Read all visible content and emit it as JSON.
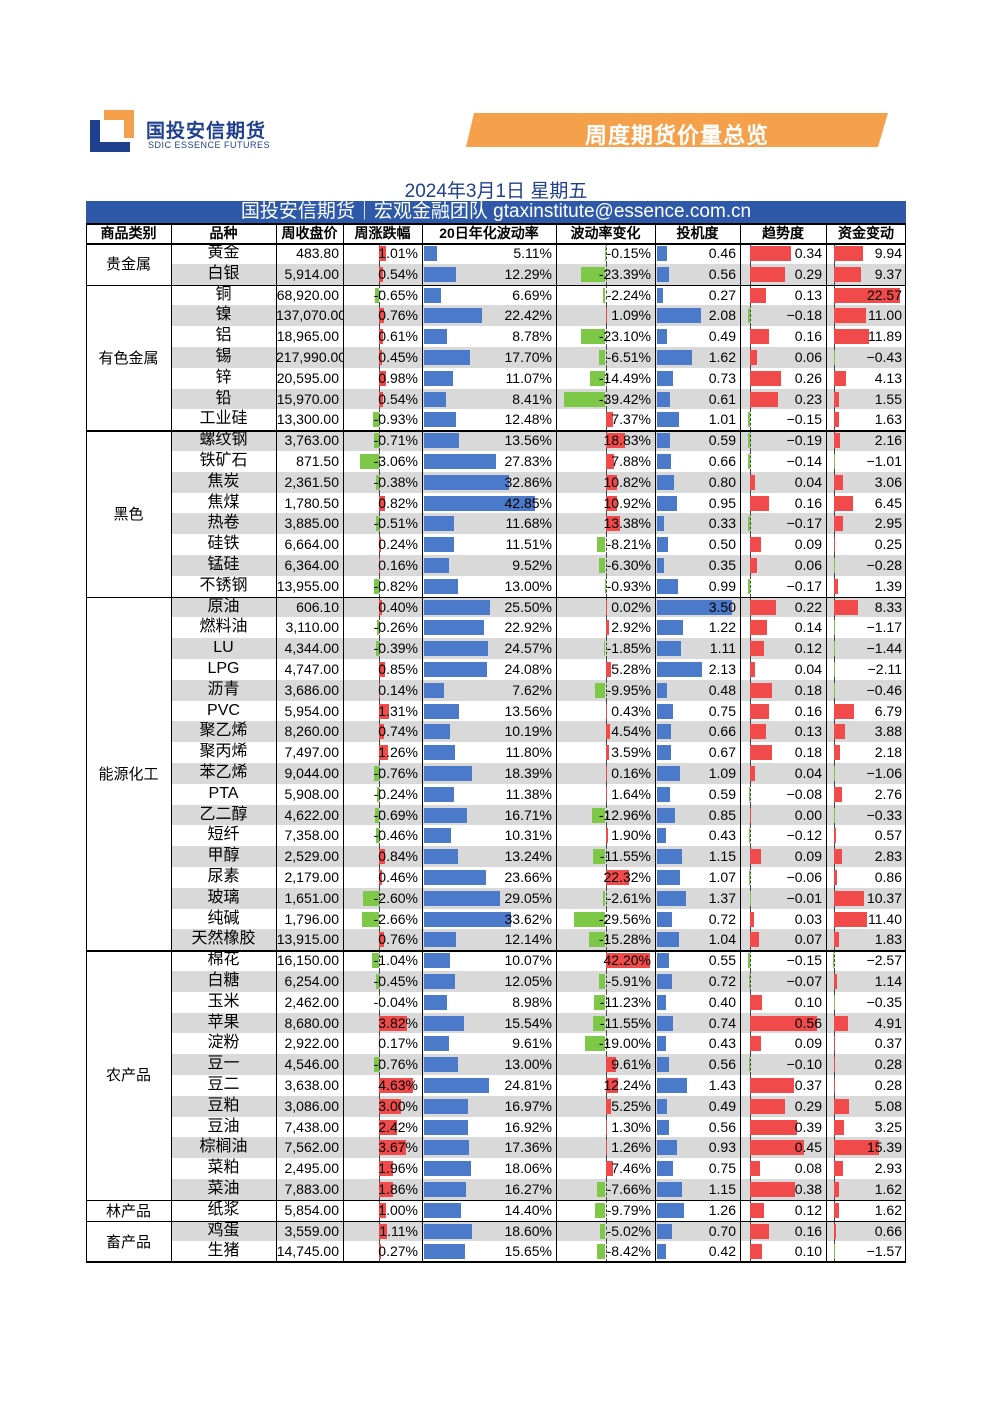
{
  "header": {
    "logo_cn": "国投安信期货",
    "logo_en": "SDIC ESSENCE FUTURES",
    "banner": "周度期货价量总览",
    "date": "2024年3月1日 星期五",
    "subtitle": "国投安信期货｜宏观金融团队 gtaxinstitute@essence.com.cn"
  },
  "colors": {
    "blue_bar": "#4a7ac9",
    "red_bar": "#f04a4a",
    "green_bar": "#7ec847",
    "grey_row": "#d9d9d9",
    "header_blue": "#2e59a8",
    "orange": "#f5a04a"
  },
  "table": {
    "columns": [
      "商品类别",
      "品种",
      "周收盘价",
      "周涨跌幅",
      "20日年化波动率",
      "波动率变化",
      "投机度",
      "趋势度",
      "资金变动"
    ],
    "categories": [
      {
        "name": "贵金属",
        "start": 0,
        "count": 2
      },
      {
        "name": "有色金属",
        "start": 2,
        "count": 7
      },
      {
        "name": "黑色",
        "start": 9,
        "count": 8
      },
      {
        "name": "能源化工",
        "start": 17,
        "count": 17
      },
      {
        "name": "农产品",
        "start": 34,
        "count": 12
      },
      {
        "name": "林产品",
        "start": 46,
        "count": 1
      },
      {
        "name": "畜产品",
        "start": 47,
        "count": 2
      }
    ],
    "rows": [
      [
        "黄金",
        "483.80",
        "1.01%",
        "5.11%",
        "-0.15%",
        "0.46",
        "0.34",
        "9.94"
      ],
      [
        "白银",
        "5,914.00",
        "0.54%",
        "12.29%",
        "-23.39%",
        "0.56",
        "0.29",
        "9.37"
      ],
      [
        "铜",
        "68,920.00",
        "-0.65%",
        "6.69%",
        "-2.24%",
        "0.27",
        "0.13",
        "22.57"
      ],
      [
        "镍",
        "137,070.00",
        "0.76%",
        "22.42%",
        "1.09%",
        "2.08",
        "−0.18",
        "11.00"
      ],
      [
        "铝",
        "18,965.00",
        "0.61%",
        "8.78%",
        "-23.10%",
        "0.49",
        "0.16",
        "11.89"
      ],
      [
        "锡",
        "217,990.00",
        "0.45%",
        "17.70%",
        "-6.51%",
        "1.62",
        "0.06",
        "−0.43"
      ],
      [
        "锌",
        "20,595.00",
        "0.98%",
        "11.07%",
        "-14.49%",
        "0.73",
        "0.26",
        "4.13"
      ],
      [
        "铅",
        "15,970.00",
        "0.54%",
        "8.41%",
        "-39.42%",
        "0.61",
        "0.23",
        "1.55"
      ],
      [
        "工业硅",
        "13,300.00",
        "-0.93%",
        "12.48%",
        "7.37%",
        "1.01",
        "−0.15",
        "1.63"
      ],
      [
        "螺纹钢",
        "3,763.00",
        "-0.71%",
        "13.56%",
        "18.83%",
        "0.59",
        "−0.19",
        "2.16"
      ],
      [
        "铁矿石",
        "871.50",
        "-3.06%",
        "27.83%",
        "7.88%",
        "0.66",
        "−0.14",
        "−1.01"
      ],
      [
        "焦炭",
        "2,361.50",
        "-0.38%",
        "32.86%",
        "10.82%",
        "0.80",
        "0.04",
        "3.06"
      ],
      [
        "焦煤",
        "1,780.50",
        "0.82%",
        "42.85%",
        "10.92%",
        "0.95",
        "0.16",
        "6.45"
      ],
      [
        "热卷",
        "3,885.00",
        "-0.51%",
        "11.68%",
        "13.38%",
        "0.33",
        "−0.17",
        "2.95"
      ],
      [
        "硅铁",
        "6,664.00",
        "0.24%",
        "11.51%",
        "-8.21%",
        "0.50",
        "0.09",
        "0.25"
      ],
      [
        "锰硅",
        "6,364.00",
        "0.16%",
        "9.52%",
        "-6.30%",
        "0.35",
        "0.06",
        "−0.28"
      ],
      [
        "不锈钢",
        "13,955.00",
        "-0.82%",
        "13.00%",
        "-0.93%",
        "0.99",
        "−0.17",
        "1.39"
      ],
      [
        "原油",
        "606.10",
        "0.40%",
        "25.50%",
        "0.02%",
        "3.50",
        "0.22",
        "8.33"
      ],
      [
        "燃料油",
        "3,110.00",
        "-0.26%",
        "22.92%",
        "2.92%",
        "1.22",
        "0.14",
        "−1.17"
      ],
      [
        "LU",
        "4,344.00",
        "-0.39%",
        "24.57%",
        "-1.85%",
        "1.11",
        "0.12",
        "−1.44"
      ],
      [
        "LPG",
        "4,747.00",
        "0.85%",
        "24.08%",
        "5.28%",
        "2.13",
        "0.04",
        "−2.11"
      ],
      [
        "沥青",
        "3,686.00",
        "0.14%",
        "7.62%",
        "-9.95%",
        "0.48",
        "0.18",
        "−0.46"
      ],
      [
        "PVC",
        "5,954.00",
        "1.31%",
        "13.56%",
        "0.43%",
        "0.75",
        "0.16",
        "6.79"
      ],
      [
        "聚乙烯",
        "8,260.00",
        "0.74%",
        "10.19%",
        "4.54%",
        "0.66",
        "0.13",
        "3.88"
      ],
      [
        "聚丙烯",
        "7,497.00",
        "1.26%",
        "11.80%",
        "3.59%",
        "0.67",
        "0.18",
        "2.18"
      ],
      [
        "苯乙烯",
        "9,044.00",
        "-0.76%",
        "18.39%",
        "0.16%",
        "1.09",
        "0.04",
        "−1.06"
      ],
      [
        "PTA",
        "5,908.00",
        "-0.24%",
        "11.38%",
        "1.64%",
        "0.59",
        "−0.08",
        "2.76"
      ],
      [
        "乙二醇",
        "4,622.00",
        "-0.69%",
        "16.71%",
        "-12.96%",
        "0.85",
        "0.00",
        "−0.33"
      ],
      [
        "短纤",
        "7,358.00",
        "-0.46%",
        "10.31%",
        "1.90%",
        "0.43",
        "−0.12",
        "0.57"
      ],
      [
        "甲醇",
        "2,529.00",
        "0.84%",
        "13.24%",
        "-11.55%",
        "1.15",
        "0.09",
        "2.83"
      ],
      [
        "尿素",
        "2,179.00",
        "0.46%",
        "23.66%",
        "22.32%",
        "1.07",
        "−0.06",
        "0.86"
      ],
      [
        "玻璃",
        "1,651.00",
        "-2.60%",
        "29.05%",
        "-2.61%",
        "1.37",
        "−0.01",
        "10.37"
      ],
      [
        "纯碱",
        "1,796.00",
        "-2.66%",
        "33.62%",
        "-29.56%",
        "0.72",
        "0.03",
        "11.40"
      ],
      [
        "天然橡胶",
        "13,915.00",
        "0.76%",
        "12.14%",
        "-15.28%",
        "1.04",
        "0.07",
        "1.83"
      ],
      [
        "棉花",
        "16,150.00",
        "-1.04%",
        "10.07%",
        "42.20%",
        "0.55",
        "−0.15",
        "−2.57"
      ],
      [
        "白糖",
        "6,254.00",
        "-0.45%",
        "12.05%",
        "-5.91%",
        "0.72",
        "−0.07",
        "1.14"
      ],
      [
        "玉米",
        "2,462.00",
        "-0.04%",
        "8.98%",
        "-11.23%",
        "0.40",
        "0.10",
        "−0.35"
      ],
      [
        "苹果",
        "8,680.00",
        "3.82%",
        "15.54%",
        "-11.55%",
        "0.74",
        "0.56",
        "4.91"
      ],
      [
        "淀粉",
        "2,922.00",
        "0.17%",
        "9.61%",
        "-19.00%",
        "0.43",
        "0.09",
        "0.37"
      ],
      [
        "豆一",
        "4,546.00",
        "-0.76%",
        "13.00%",
        "9.61%",
        "0.56",
        "−0.10",
        "0.28"
      ],
      [
        "豆二",
        "3,638.00",
        "4.63%",
        "24.81%",
        "12.24%",
        "1.43",
        "0.37",
        "0.28"
      ],
      [
        "豆粕",
        "3,086.00",
        "3.00%",
        "16.97%",
        "5.25%",
        "0.49",
        "0.29",
        "5.08"
      ],
      [
        "豆油",
        "7,438.00",
        "2.42%",
        "16.92%",
        "1.30%",
        "0.56",
        "0.39",
        "3.25"
      ],
      [
        "棕榈油",
        "7,562.00",
        "3.67%",
        "17.36%",
        "1.26%",
        "0.93",
        "0.45",
        "15.39"
      ],
      [
        "菜粕",
        "2,495.00",
        "1.96%",
        "18.06%",
        "7.46%",
        "0.75",
        "0.08",
        "2.93"
      ],
      [
        "菜油",
        "7,883.00",
        "1.86%",
        "16.27%",
        "-7.66%",
        "1.15",
        "0.38",
        "1.62"
      ],
      [
        "纸浆",
        "5,854.00",
        "1.00%",
        "14.40%",
        "-9.79%",
        "1.26",
        "0.12",
        "1.62"
      ],
      [
        "鸡蛋",
        "3,559.00",
        "1.11%",
        "18.60%",
        "-5.02%",
        "0.70",
        "0.16",
        "0.66"
      ],
      [
        "生猪",
        "14,745.00",
        "0.27%",
        "15.65%",
        "-8.42%",
        "0.42",
        "0.10",
        "−1.57"
      ]
    ]
  }
}
